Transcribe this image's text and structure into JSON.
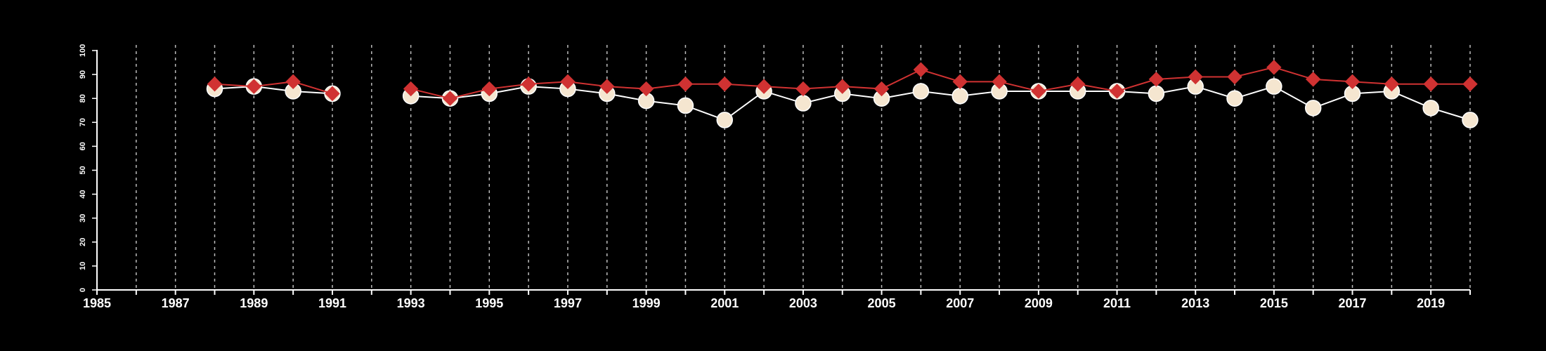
{
  "chart_data": {
    "type": "line",
    "title": "",
    "xlabel": "",
    "ylabel": "",
    "xlim": [
      1985,
      2020
    ],
    "ylim": [
      0,
      100
    ],
    "grid": "vertical-dashed",
    "background": "#000000",
    "x_ticks": [
      "1985",
      "1987",
      "1989",
      "1991",
      "1993",
      "1995",
      "1997",
      "1999",
      "2001",
      "2003",
      "2005",
      "2007",
      "2009",
      "2011",
      "2013",
      "2015",
      "2017",
      "2019"
    ],
    "y_ticks": [
      "0",
      "10",
      "20",
      "30",
      "40",
      "50",
      "60",
      "70",
      "80",
      "90",
      "100"
    ],
    "x": [
      1988,
      1989,
      1990,
      1991,
      1992,
      1993,
      1994,
      1995,
      1996,
      1997,
      1998,
      1999,
      2000,
      2001,
      2002,
      2003,
      2004,
      2005,
      2006,
      2007,
      2008,
      2009,
      2010,
      2011,
      2012,
      2013,
      2014,
      2015,
      2016,
      2017,
      2018,
      2019,
      2020
    ],
    "series": [
      {
        "marker": "diamond",
        "color": "#d03232",
        "values": [
          86,
          85,
          87,
          82,
          null,
          84,
          80,
          84,
          86,
          87,
          85,
          84,
          86,
          86,
          85,
          84,
          85,
          84,
          92,
          87,
          87,
          83,
          86,
          83,
          88,
          89,
          89,
          93,
          88,
          87,
          86,
          86,
          86
        ]
      },
      {
        "marker": "circle",
        "color": "#ffffff",
        "fill": "#f5e6d0",
        "values": [
          84,
          85,
          83,
          82,
          null,
          81,
          80,
          82,
          85,
          84,
          82,
          79,
          77,
          71,
          83,
          78,
          82,
          80,
          83,
          81,
          83,
          83,
          83,
          83,
          82,
          85,
          80,
          85,
          76,
          82,
          83,
          76,
          71
        ]
      }
    ]
  }
}
